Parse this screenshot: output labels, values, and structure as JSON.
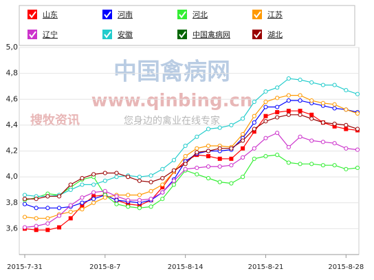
{
  "chart_data": {
    "type": "line",
    "categories": [
      "2015-7-31",
      null,
      null,
      null,
      null,
      null,
      null,
      "2015-8-7",
      null,
      null,
      null,
      null,
      null,
      null,
      "2015-8-14",
      null,
      null,
      null,
      null,
      null,
      null,
      "2015-8-21",
      null,
      null,
      null,
      null,
      null,
      null,
      "2015-8-28",
      null
    ],
    "ylim": [
      3.4,
      5.0
    ],
    "yticks": [
      {
        "value": 3.6,
        "label": "3,6"
      },
      {
        "value": 3.8,
        "label": "3,8"
      },
      {
        "value": 4.0,
        "label": "4,0"
      },
      {
        "value": 4.2,
        "label": "4,2"
      },
      {
        "value": 4.4,
        "label": "4,4"
      },
      {
        "value": 4.6,
        "label": "4,6"
      },
      {
        "value": 4.8,
        "label": "4,8"
      },
      {
        "value": 5.0,
        "label": "5,0"
      }
    ],
    "grid": true,
    "annotations": [
      "中国禽病网",
      "www.qinbing.cn",
      "搜牧资讯",
      "您身边的禽业在线专家"
    ],
    "series": [
      {
        "name": "山东",
        "color": "#ff0000",
        "marker": "square",
        "values": [
          3.6,
          3.59,
          3.59,
          3.61,
          3.68,
          3.78,
          3.85,
          3.86,
          3.82,
          3.79,
          3.78,
          3.82,
          3.92,
          4.04,
          4.12,
          4.17,
          4.16,
          4.14,
          4.14,
          4.22,
          4.35,
          4.47,
          4.5,
          4.51,
          4.51,
          4.48,
          4.42,
          4.39,
          4.37,
          4.36
        ]
      },
      {
        "name": "河南",
        "color": "#0000ff",
        "marker": "circle",
        "values": [
          3.79,
          3.76,
          3.76,
          3.76,
          3.77,
          3.8,
          3.83,
          3.86,
          3.82,
          3.81,
          3.8,
          3.82,
          3.88,
          3.98,
          4.12,
          4.18,
          4.2,
          4.2,
          4.21,
          4.3,
          4.42,
          4.54,
          4.54,
          4.59,
          4.59,
          4.57,
          4.55,
          4.53,
          4.52,
          4.5
        ]
      },
      {
        "name": "河北",
        "color": "#33ee33",
        "marker": "circle",
        "values": [
          3.82,
          3.84,
          3.87,
          3.86,
          3.92,
          3.98,
          4.0,
          3.86,
          3.79,
          3.77,
          3.76,
          3.77,
          3.83,
          3.94,
          4.05,
          4.02,
          3.99,
          3.96,
          3.95,
          4.0,
          4.14,
          4.16,
          4.17,
          4.11,
          4.1,
          4.1,
          4.09,
          4.09,
          4.06,
          4.07
        ]
      },
      {
        "name": "江苏",
        "color": "#ff9900",
        "marker": "circle",
        "values": [
          3.69,
          3.68,
          3.68,
          3.71,
          3.73,
          3.75,
          3.8,
          3.84,
          3.86,
          3.86,
          3.86,
          3.89,
          3.94,
          4.04,
          4.16,
          4.22,
          4.24,
          4.24,
          4.23,
          4.33,
          4.47,
          4.58,
          4.61,
          4.63,
          4.63,
          4.59,
          4.57,
          4.56,
          4.52,
          4.49
        ]
      },
      {
        "name": "辽宁",
        "color": "#cc33cc",
        "marker": "circle",
        "values": [
          3.61,
          3.62,
          3.64,
          3.7,
          3.78,
          3.84,
          3.88,
          3.89,
          3.85,
          3.82,
          3.82,
          3.83,
          3.88,
          3.97,
          4.06,
          4.07,
          4.08,
          4.08,
          4.09,
          4.15,
          4.22,
          4.3,
          4.34,
          4.23,
          4.31,
          4.28,
          4.27,
          4.26,
          4.22,
          4.21
        ]
      },
      {
        "name": "安徽",
        "color": "#22cccc",
        "marker": "circle",
        "values": [
          3.86,
          3.85,
          3.85,
          3.86,
          3.9,
          3.94,
          3.94,
          3.97,
          4.0,
          4.01,
          4.0,
          4.01,
          4.06,
          4.13,
          4.24,
          4.31,
          4.37,
          4.38,
          4.4,
          4.45,
          4.58,
          4.66,
          4.69,
          4.76,
          4.75,
          4.73,
          4.71,
          4.71,
          4.67,
          4.64
        ]
      },
      {
        "name": "中国禽病网",
        "color": "#006600",
        "marker": "circle",
        "values": [
          null,
          null,
          null,
          null,
          null,
          null,
          null,
          null,
          null,
          null,
          null,
          null,
          null,
          null,
          null,
          null,
          null,
          null,
          null,
          null,
          null,
          null,
          null,
          null,
          null,
          null,
          null,
          null,
          null,
          null
        ]
      },
      {
        "name": "湖北",
        "color": "#990000",
        "marker": "circle",
        "values": [
          3.83,
          3.83,
          3.85,
          3.85,
          3.94,
          3.99,
          4.02,
          4.03,
          4.03,
          4.0,
          3.97,
          3.96,
          3.99,
          4.05,
          4.1,
          4.19,
          4.2,
          4.22,
          4.22,
          4.28,
          4.37,
          4.43,
          4.46,
          4.48,
          4.48,
          4.45,
          4.42,
          4.41,
          4.4,
          4.37
        ]
      }
    ]
  }
}
